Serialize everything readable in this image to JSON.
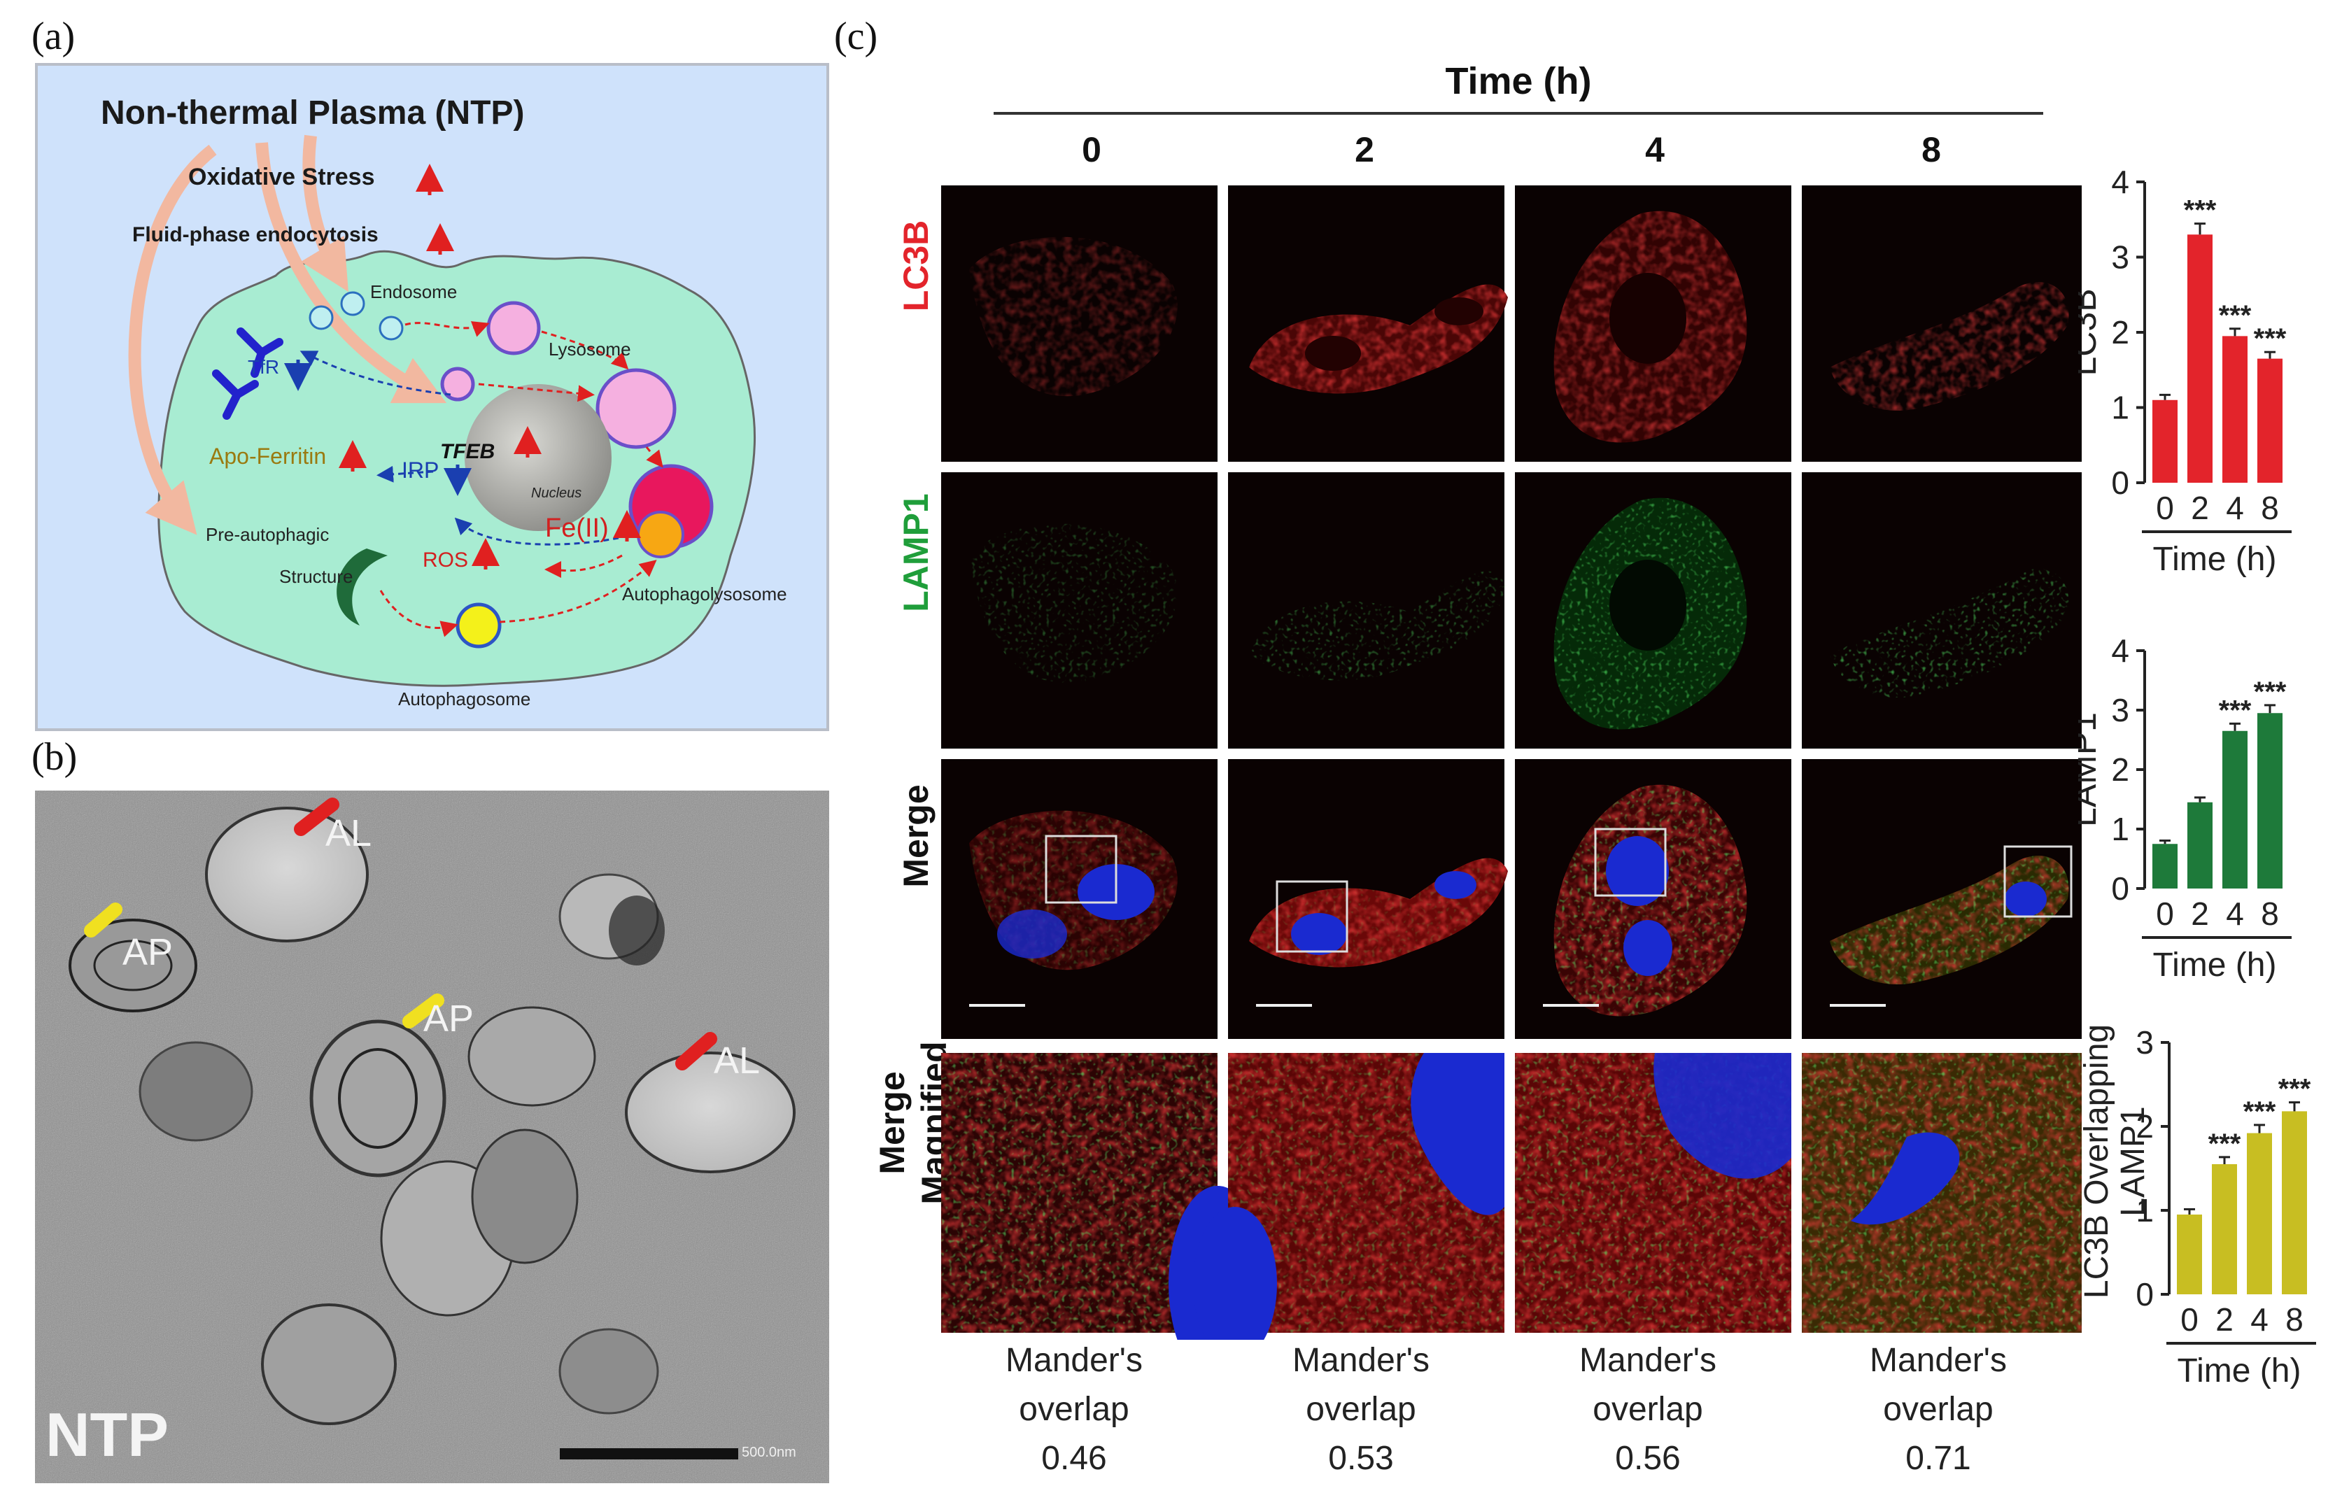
{
  "panels": {
    "a": "(a)",
    "b": "(b)",
    "c": "(c)"
  },
  "schematic": {
    "title": "Non-thermal Plasma (NTP)",
    "oxidative_stress": "Oxidative Stress",
    "endocytosis": "Fluid-phase endocytosis",
    "endosome": "Endosome",
    "lysosome": "Lysosome",
    "tfr": "TfR",
    "tfeb": "TFEB",
    "nucleus": "Nucleus",
    "apo_ferritin": "Apo-Ferritin",
    "irp": "IRP",
    "pre_autophagic_1": "Pre-autophagic",
    "pre_autophagic_2": "Structure",
    "ros": "ROS",
    "fe2": "Fe(II)",
    "autophagolysosome": "Autophagolysosome",
    "autophagosome": "Autophagosome",
    "colors": {
      "background": "#cfe2fb",
      "cell": "#a8ecd2",
      "up_arrow": "#e02020",
      "down_arrow": "#1a3fb0",
      "nucleus": "#9a9a96"
    }
  },
  "tem": {
    "labels": [
      "AL",
      "AP",
      "AP",
      "AL"
    ],
    "condition": "NTP",
    "scale": "500.0nm"
  },
  "microscopy": {
    "header": "Time (h)",
    "times": [
      "0",
      "2",
      "4",
      "8"
    ],
    "rows": [
      "LC3B",
      "LAMP1",
      "Merge",
      "Merge\nMagnified"
    ],
    "row_colors": [
      "#e3242b",
      "#1f9e3a",
      "#111111",
      "#111111"
    ],
    "mander_label_1": "Mander's",
    "mander_label_2": "overlap",
    "mander_values": [
      "0.46",
      "0.53",
      "0.56",
      "0.71"
    ]
  },
  "chart_data": [
    {
      "type": "bar",
      "ylabel": "LC3B",
      "xlabel": "Time (h)",
      "categories": [
        "0",
        "2",
        "4",
        "8"
      ],
      "values": [
        1.1,
        3.3,
        1.95,
        1.65
      ],
      "ylim": [
        0,
        4
      ],
      "yticks": [
        0,
        1,
        2,
        3,
        4
      ],
      "significance": [
        "",
        "***",
        "***",
        "***"
      ],
      "color": "#e3242b"
    },
    {
      "type": "bar",
      "ylabel": "LAMP1",
      "xlabel": "Time (h)",
      "categories": [
        "0",
        "2",
        "4",
        "8"
      ],
      "values": [
        0.75,
        1.45,
        2.65,
        2.95
      ],
      "ylim": [
        0,
        4
      ],
      "yticks": [
        0,
        1,
        2,
        3,
        4
      ],
      "significance": [
        "",
        "",
        "***",
        "***"
      ],
      "color": "#1e7a3a"
    },
    {
      "type": "bar",
      "ylabel": "LC3B Overlapping LAMP1",
      "ylabel_lines": [
        "LC3B Overlapping",
        "LAMP1"
      ],
      "xlabel": "Time (h)",
      "categories": [
        "0",
        "2",
        "4",
        "8"
      ],
      "values": [
        0.95,
        1.55,
        1.92,
        2.18
      ],
      "ylim": [
        0,
        3
      ],
      "yticks": [
        0,
        1,
        2,
        3
      ],
      "significance": [
        "",
        "***",
        "***",
        "***"
      ],
      "color": "#c8be22"
    }
  ]
}
